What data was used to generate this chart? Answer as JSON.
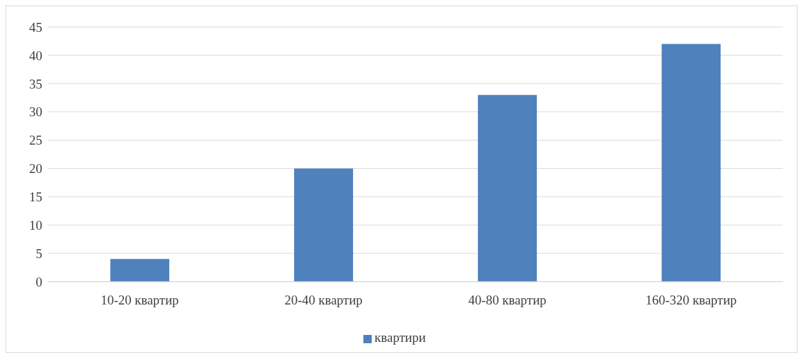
{
  "chart_data": {
    "type": "bar",
    "categories": [
      "10-20 квартир",
      "20-40 квартир",
      "40-80 квартир",
      "160-320 квартир"
    ],
    "series": [
      {
        "name": "квартири",
        "color": "#4f81bd",
        "values": [
          4,
          20,
          33,
          42
        ]
      }
    ],
    "ylim": [
      0,
      45
    ],
    "yticks": [
      0,
      5,
      10,
      15,
      20,
      25,
      30,
      35,
      40,
      45
    ],
    "grid": "y",
    "legend": "bottom"
  }
}
